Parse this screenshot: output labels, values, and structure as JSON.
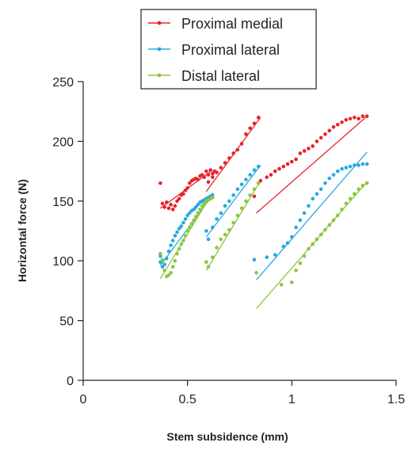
{
  "chart_data": {
    "type": "scatter",
    "title": "",
    "xlabel": "Stem subsidence (mm)",
    "ylabel": "Horizontal force (N)",
    "xlim": [
      0,
      1.5
    ],
    "ylim": [
      0,
      250
    ],
    "xticks": [
      "0",
      "0.5",
      "1",
      "1.5"
    ],
    "yticks": [
      "0",
      "50",
      "100",
      "150",
      "200",
      "250"
    ],
    "grid": false,
    "legend_position": "top-center",
    "series": [
      {
        "name": "Proximal medial",
        "color": "#e8232b",
        "points": [
          [
            0.37,
            165
          ],
          [
            0.38,
            148
          ],
          [
            0.39,
            145
          ],
          [
            0.4,
            149
          ],
          [
            0.41,
            144
          ],
          [
            0.42,
            147
          ],
          [
            0.43,
            143
          ],
          [
            0.44,
            146
          ],
          [
            0.45,
            150
          ],
          [
            0.46,
            152
          ],
          [
            0.47,
            155
          ],
          [
            0.48,
            156
          ],
          [
            0.49,
            159
          ],
          [
            0.5,
            161
          ],
          [
            0.51,
            165
          ],
          [
            0.52,
            167
          ],
          [
            0.53,
            168
          ],
          [
            0.54,
            169
          ],
          [
            0.55,
            168
          ],
          [
            0.56,
            171
          ],
          [
            0.57,
            172
          ],
          [
            0.58,
            170
          ],
          [
            0.59,
            175
          ],
          [
            0.6,
            172
          ],
          [
            0.61,
            176
          ],
          [
            0.62,
            173
          ],
          [
            0.63,
            175
          ],
          [
            0.6,
            166
          ],
          [
            0.62,
            170
          ],
          [
            0.64,
            174
          ],
          [
            0.66,
            178
          ],
          [
            0.68,
            182
          ],
          [
            0.7,
            186
          ],
          [
            0.72,
            190
          ],
          [
            0.74,
            193
          ],
          [
            0.76,
            198
          ],
          [
            0.78,
            206
          ],
          [
            0.8,
            211
          ],
          [
            0.82,
            215
          ],
          [
            0.84,
            220
          ],
          [
            0.82,
            154
          ],
          [
            0.85,
            167
          ],
          [
            0.88,
            170
          ],
          [
            0.9,
            172
          ],
          [
            0.92,
            175
          ],
          [
            0.94,
            177
          ],
          [
            0.96,
            179
          ],
          [
            0.98,
            181
          ],
          [
            1.0,
            183
          ],
          [
            1.02,
            185
          ],
          [
            1.04,
            190
          ],
          [
            1.06,
            192
          ],
          [
            1.08,
            194
          ],
          [
            1.1,
            196
          ],
          [
            1.12,
            200
          ],
          [
            1.14,
            203
          ],
          [
            1.16,
            206
          ],
          [
            1.18,
            209
          ],
          [
            1.2,
            212
          ],
          [
            1.22,
            214
          ],
          [
            1.24,
            216
          ],
          [
            1.26,
            218
          ],
          [
            1.28,
            219
          ],
          [
            1.3,
            220
          ],
          [
            1.32,
            219
          ],
          [
            1.34,
            221
          ],
          [
            1.36,
            221
          ]
        ],
        "fit_lines": [
          [
            [
              0.37,
              144
            ],
            [
              0.62,
              176
            ]
          ],
          [
            [
              0.59,
              158
            ],
            [
              0.85,
              220
            ]
          ],
          [
            [
              0.83,
              140
            ],
            [
              1.36,
              221
            ]
          ]
        ]
      },
      {
        "name": "Proximal lateral",
        "color": "#27a9e1",
        "points": [
          [
            0.37,
            104
          ],
          [
            0.37,
            99
          ],
          [
            0.38,
            95
          ],
          [
            0.39,
            97
          ],
          [
            0.4,
            102
          ],
          [
            0.41,
            108
          ],
          [
            0.42,
            113
          ],
          [
            0.43,
            117
          ],
          [
            0.44,
            121
          ],
          [
            0.45,
            124
          ],
          [
            0.46,
            127
          ],
          [
            0.47,
            129
          ],
          [
            0.48,
            132
          ],
          [
            0.49,
            135
          ],
          [
            0.5,
            138
          ],
          [
            0.51,
            140
          ],
          [
            0.52,
            142
          ],
          [
            0.53,
            143
          ],
          [
            0.54,
            145
          ],
          [
            0.55,
            147
          ],
          [
            0.56,
            149
          ],
          [
            0.57,
            150
          ],
          [
            0.58,
            151
          ],
          [
            0.59,
            152
          ],
          [
            0.6,
            153
          ],
          [
            0.61,
            154
          ],
          [
            0.62,
            155
          ],
          [
            0.59,
            125
          ],
          [
            0.6,
            118
          ],
          [
            0.62,
            128
          ],
          [
            0.64,
            135
          ],
          [
            0.66,
            140
          ],
          [
            0.68,
            146
          ],
          [
            0.7,
            150
          ],
          [
            0.72,
            155
          ],
          [
            0.74,
            160
          ],
          [
            0.76,
            164
          ],
          [
            0.78,
            168
          ],
          [
            0.8,
            172
          ],
          [
            0.82,
            176
          ],
          [
            0.84,
            179
          ],
          [
            0.82,
            101
          ],
          [
            0.88,
            103
          ],
          [
            0.92,
            105
          ],
          [
            0.96,
            112
          ],
          [
            0.98,
            115
          ],
          [
            1.0,
            120
          ],
          [
            1.02,
            128
          ],
          [
            1.04,
            134
          ],
          [
            1.06,
            140
          ],
          [
            1.08,
            146
          ],
          [
            1.1,
            152
          ],
          [
            1.12,
            156
          ],
          [
            1.14,
            160
          ],
          [
            1.16,
            165
          ],
          [
            1.18,
            169
          ],
          [
            1.2,
            172
          ],
          [
            1.22,
            175
          ],
          [
            1.24,
            177
          ],
          [
            1.26,
            178
          ],
          [
            1.28,
            179
          ],
          [
            1.3,
            180
          ],
          [
            1.32,
            180
          ],
          [
            1.34,
            181
          ],
          [
            1.36,
            181
          ]
        ],
        "fit_lines": [
          [
            [
              0.37,
              96
            ],
            [
              0.62,
              155
            ]
          ],
          [
            [
              0.59,
              120
            ],
            [
              0.85,
              180
            ]
          ],
          [
            [
              0.83,
              84
            ],
            [
              1.36,
              191
            ]
          ]
        ]
      },
      {
        "name": "Distal lateral",
        "color": "#8dc63f",
        "points": [
          [
            0.37,
            106
          ],
          [
            0.38,
            101
          ],
          [
            0.39,
            92
          ],
          [
            0.4,
            87
          ],
          [
            0.41,
            88
          ],
          [
            0.42,
            90
          ],
          [
            0.43,
            95
          ],
          [
            0.44,
            100
          ],
          [
            0.45,
            106
          ],
          [
            0.46,
            110
          ],
          [
            0.47,
            114
          ],
          [
            0.48,
            117
          ],
          [
            0.49,
            121
          ],
          [
            0.5,
            125
          ],
          [
            0.51,
            128
          ],
          [
            0.52,
            131
          ],
          [
            0.53,
            134
          ],
          [
            0.54,
            137
          ],
          [
            0.55,
            140
          ],
          [
            0.56,
            143
          ],
          [
            0.57,
            146
          ],
          [
            0.58,
            148
          ],
          [
            0.59,
            150
          ],
          [
            0.6,
            151
          ],
          [
            0.61,
            152
          ],
          [
            0.62,
            153
          ],
          [
            0.59,
            99
          ],
          [
            0.6,
            95
          ],
          [
            0.62,
            103
          ],
          [
            0.64,
            111
          ],
          [
            0.66,
            118
          ],
          [
            0.68,
            122
          ],
          [
            0.7,
            126
          ],
          [
            0.72,
            132
          ],
          [
            0.74,
            138
          ],
          [
            0.76,
            144
          ],
          [
            0.78,
            150
          ],
          [
            0.8,
            155
          ],
          [
            0.82,
            160
          ],
          [
            0.84,
            165
          ],
          [
            0.83,
            90
          ],
          [
            0.95,
            80
          ],
          [
            1.0,
            82
          ],
          [
            1.02,
            92
          ],
          [
            1.04,
            98
          ],
          [
            1.06,
            104
          ],
          [
            1.08,
            110
          ],
          [
            1.1,
            114
          ],
          [
            1.12,
            118
          ],
          [
            1.14,
            122
          ],
          [
            1.16,
            126
          ],
          [
            1.18,
            130
          ],
          [
            1.2,
            134
          ],
          [
            1.22,
            138
          ],
          [
            1.24,
            143
          ],
          [
            1.26,
            148
          ],
          [
            1.28,
            152
          ],
          [
            1.3,
            156
          ],
          [
            1.32,
            160
          ],
          [
            1.34,
            163
          ],
          [
            1.36,
            165
          ]
        ],
        "fit_lines": [
          [
            [
              0.37,
              85
            ],
            [
              0.62,
              157
            ]
          ],
          [
            [
              0.59,
              92
            ],
            [
              0.85,
              167
            ]
          ],
          [
            [
              0.83,
              60
            ],
            [
              1.36,
              166
            ]
          ]
        ]
      }
    ]
  }
}
